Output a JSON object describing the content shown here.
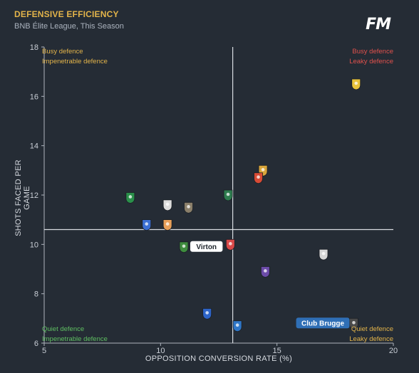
{
  "header": {
    "title": "DEFENSIVE EFFICIENCY",
    "subtitle": "BNB Élite League, This Season",
    "logo": "FM"
  },
  "quadrants": {
    "top_left": [
      "Busy defence",
      "Impenetrable defence"
    ],
    "top_right": [
      "Busy defence",
      "Leaky defence"
    ],
    "bottom_left": [
      "Quiet defence",
      "Impenetrable defence"
    ],
    "bottom_right": [
      "Quiet defence",
      "Leaky defence"
    ]
  },
  "colors": {
    "background": "#252c35",
    "title": "#e3b44a",
    "busy": "#e3b44a",
    "leaky": "#e0514c",
    "quiet": "#5fbf62",
    "label_dark": "#2f6fb6"
  },
  "chart_data": {
    "type": "scatter",
    "title": "DEFENSIVE EFFICIENCY",
    "subtitle": "BNB Élite League, This Season",
    "xlabel": "OPPOSITION CONVERSION RATE (%)",
    "ylabel": "SHOTS FACED PER GAME",
    "xlim": [
      5,
      20
    ],
    "ylim": [
      6,
      18
    ],
    "xticks": [
      "5",
      "10",
      "15",
      "20"
    ],
    "yticks": [
      "6",
      "8",
      "10",
      "12",
      "14",
      "16",
      "18"
    ],
    "reference_lines": {
      "x": 13.1,
      "y": 10.6
    },
    "grid": false,
    "points": [
      {
        "x": 18.4,
        "y": 16.5,
        "label": "",
        "color": "#e8c33a",
        "icon": "crest-yellow-blue"
      },
      {
        "x": 14.4,
        "y": 13.0,
        "label": "",
        "color": "#d9a63b",
        "icon": "crest-gold"
      },
      {
        "x": 14.2,
        "y": 12.7,
        "label": "",
        "color": "#d84b35",
        "icon": "crest-red-gold"
      },
      {
        "x": 12.9,
        "y": 12.0,
        "label": "",
        "color": "#2e7d4f",
        "icon": "crest-green"
      },
      {
        "x": 8.7,
        "y": 11.9,
        "label": "",
        "color": "#2a8f4a",
        "icon": "crest-green-c"
      },
      {
        "x": 10.3,
        "y": 11.6,
        "label": "",
        "color": "#dddddd",
        "icon": "crest-black-white"
      },
      {
        "x": 11.2,
        "y": 11.5,
        "label": "",
        "color": "#8a7f6a",
        "icon": "crest-grey"
      },
      {
        "x": 9.4,
        "y": 10.8,
        "label": "",
        "color": "#3b6fd4",
        "icon": "crest-blue"
      },
      {
        "x": 10.3,
        "y": 10.8,
        "label": "",
        "color": "#e8a05a",
        "icon": "crest-orange"
      },
      {
        "x": 13.0,
        "y": 10.0,
        "label": "",
        "color": "#d94949",
        "icon": "crest-red-white"
      },
      {
        "x": 11.0,
        "y": 9.9,
        "label": "Virton",
        "color": "#3e8d3e",
        "icon": "crest-green-yellow"
      },
      {
        "x": 17.0,
        "y": 9.6,
        "label": "",
        "color": "#d6d6d6",
        "icon": "crest-white-red"
      },
      {
        "x": 14.5,
        "y": 8.9,
        "label": "",
        "color": "#6b4ba8",
        "icon": "crest-purple"
      },
      {
        "x": 12.0,
        "y": 7.2,
        "label": "",
        "color": "#2d64c8",
        "icon": "crest-blue-white"
      },
      {
        "x": 13.3,
        "y": 6.7,
        "label": "",
        "color": "#2f77c8",
        "icon": "crest-blue-yellow"
      },
      {
        "x": 18.3,
        "y": 6.8,
        "label": "Club Brugge",
        "color": "#4a4a4a",
        "icon": "crest-club-brugge"
      }
    ]
  }
}
